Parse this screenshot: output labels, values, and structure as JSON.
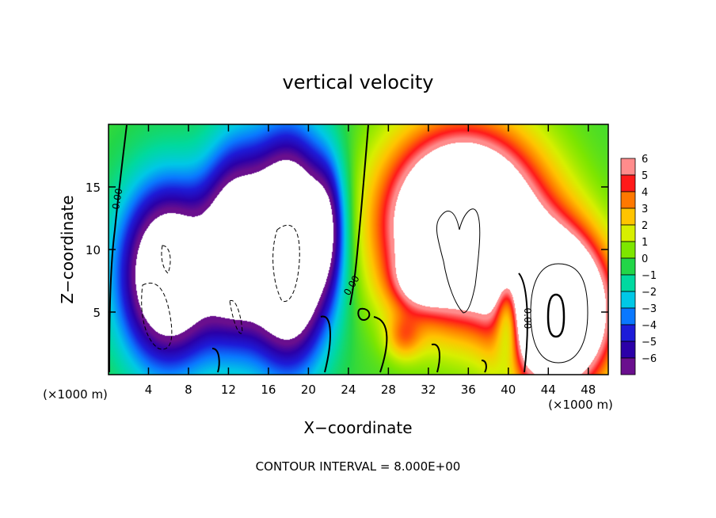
{
  "chart_data": {
    "type": "heatmap",
    "title": "vertical velocity",
    "xlabel": "X−coordinate",
    "ylabel": "Z−coordinate",
    "x_units_left": "(×1000 m)",
    "x_units_right": "(×1000 m)",
    "footer": "CONTOUR INTERVAL = 8.000E+00",
    "xlim": [
      0,
      50
    ],
    "ylim": [
      0,
      20
    ],
    "xticks": [
      4,
      8,
      12,
      16,
      20,
      24,
      28,
      32,
      36,
      40,
      44,
      48
    ],
    "yticks": [
      5,
      10,
      15
    ],
    "colorbar": {
      "ticks": [
        6,
        5,
        4,
        3,
        2,
        1,
        0,
        -1,
        -2,
        -3,
        -4,
        -5,
        -6
      ],
      "tick_labels": [
        "6",
        "5",
        "4",
        "3",
        "2",
        "1",
        "0",
        "−1",
        "−2",
        "−3",
        "−4",
        "−5",
        "−6"
      ],
      "range": [
        -6,
        6
      ]
    },
    "contour_labels": [
      {
        "text": "0.00",
        "x": 1.2,
        "y": 14.0,
        "rotate": -80
      },
      {
        "text": "0.00",
        "x": 24.6,
        "y": 7.0,
        "rotate": -60
      },
      {
        "text": "0.00",
        "x": 41.6,
        "y": 4.5,
        "rotate": 90
      }
    ],
    "updrafts": [
      {
        "cx": 35.5,
        "cy": 12.0,
        "rx": 8.5,
        "ry": 8.0,
        "amp": 15
      },
      {
        "cx": 45.0,
        "cy": 5.0,
        "rx": 5.5,
        "ry": 6.5,
        "amp": 16
      },
      {
        "cx": 31.0,
        "cy": 7.5,
        "rx": 3.0,
        "ry": 2.5,
        "amp": 3
      },
      {
        "cx": 29.5,
        "cy": 3.0,
        "rx": 2.0,
        "ry": 2.0,
        "amp": 2.5
      }
    ],
    "downdrafts": [
      {
        "cx": 6.0,
        "cy": 8.0,
        "rx": 5.5,
        "ry": 8.0,
        "amp": -11
      },
      {
        "cx": 18.0,
        "cy": 10.0,
        "rx": 4.5,
        "ry": 9.5,
        "amp": -14
      },
      {
        "cx": 12.5,
        "cy": 10.5,
        "rx": 3.5,
        "ry": 8.5,
        "amp": -8
      },
      {
        "cx": 40.0,
        "cy": 5.0,
        "rx": 1.5,
        "ry": 4.5,
        "amp": -6
      },
      {
        "cx": 22.0,
        "cy": 12.0,
        "rx": 2.0,
        "ry": 6.0,
        "amp": -4
      }
    ],
    "grid": false
  }
}
